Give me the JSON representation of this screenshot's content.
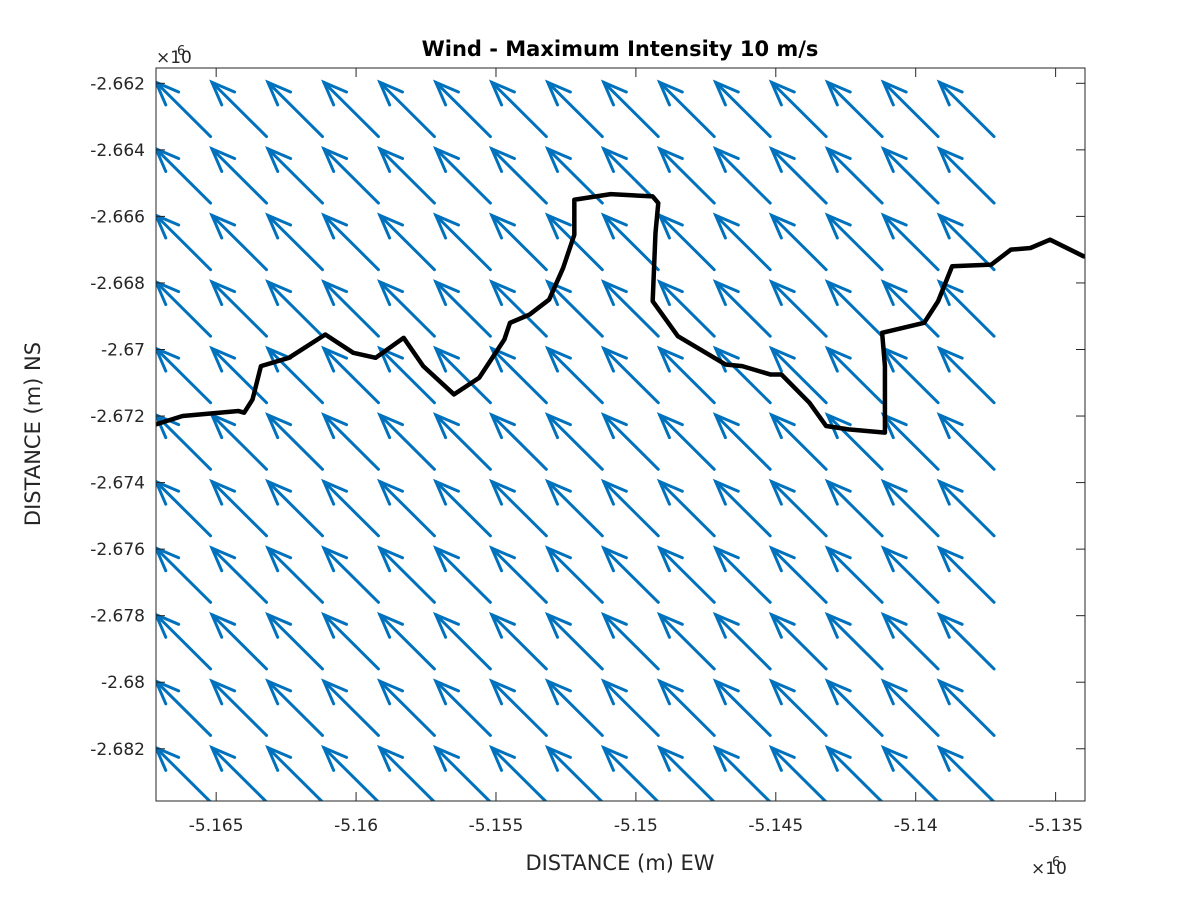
{
  "chart_data": {
    "type": "quiver",
    "title": "Wind - Maximum Intensity 10 m/s",
    "xlabel": "DISTANCE (m) EW",
    "ylabel": "DISTANCE (m) NS",
    "x_exponent": "×10",
    "x_exponent_power": "6",
    "y_exponent": "×10",
    "y_exponent_power": "6",
    "xlim": [
      -5.16715,
      -5.13395
    ],
    "ylim": [
      -2.68357,
      -2.66154
    ],
    "xticks": [
      -5.165,
      -5.16,
      -5.155,
      -5.15,
      -5.145,
      -5.14,
      -5.135
    ],
    "xtick_labels": [
      "-5.165",
      "-5.16",
      "-5.155",
      "-5.15",
      "-5.145",
      "-5.14",
      "-5.135"
    ],
    "yticks": [
      -2.662,
      -2.664,
      -2.666,
      -2.668,
      -2.67,
      -2.672,
      -2.674,
      -2.676,
      -2.678,
      -2.68,
      -2.682
    ],
    "ytick_labels": [
      "-2.662",
      "-2.664",
      "-2.666",
      "-2.668",
      "-2.67",
      "-2.672",
      "-2.674",
      "-2.676",
      "-2.678",
      "-2.68",
      "-2.682"
    ],
    "grid": false,
    "box": true,
    "quiver": {
      "color": "#0072BD",
      "x_start": -5.1672,
      "x_step": 0.002,
      "x_count": 16,
      "y_start": -2.6836,
      "y_step": 0.002,
      "y_count": 11,
      "u": -0.00195,
      "v": 0.00163,
      "note_units": "arrow components in data units (×10^6 m)"
    },
    "coastline": {
      "color": "#000000",
      "x": [
        -5.16715,
        -5.1662,
        -5.1642,
        -5.164,
        -5.1637,
        -5.1634,
        -5.1624,
        -5.1611,
        -5.1601,
        -5.1593,
        -5.1583,
        -5.1576,
        -5.1565,
        -5.1556,
        -5.1547,
        -5.1545,
        -5.1538,
        -5.1531,
        -5.1526,
        -5.1522,
        -5.1522,
        -5.1509,
        -5.1494,
        -5.1492,
        -5.1493,
        -5.1494,
        -5.1485,
        -5.1468,
        -5.1462,
        -5.1452,
        -5.1448,
        -5.1438,
        -5.1432,
        -5.1424,
        -5.1411,
        -5.1411,
        -5.1412,
        -5.1397,
        -5.1392,
        -5.1387,
        -5.1373,
        -5.1366,
        -5.1359,
        -5.1352,
        -5.134
      ],
      "y": [
        -2.67225,
        -2.672,
        -2.67185,
        -2.6719,
        -2.6715,
        -2.6705,
        -2.67025,
        -2.66955,
        -2.6701,
        -2.67025,
        -2.66965,
        -2.6705,
        -2.67135,
        -2.67085,
        -2.6697,
        -2.6692,
        -2.66895,
        -2.6685,
        -2.66755,
        -2.66655,
        -2.6655,
        -2.66533,
        -2.6654,
        -2.6656,
        -2.6665,
        -2.66855,
        -2.6696,
        -2.67045,
        -2.6705,
        -2.67075,
        -2.67075,
        -2.6716,
        -2.6723,
        -2.6724,
        -2.6725,
        -2.6705,
        -2.6695,
        -2.6692,
        -2.66855,
        -2.6675,
        -2.66745,
        -2.667,
        -2.66695,
        -2.6667,
        -2.6672
      ]
    }
  }
}
